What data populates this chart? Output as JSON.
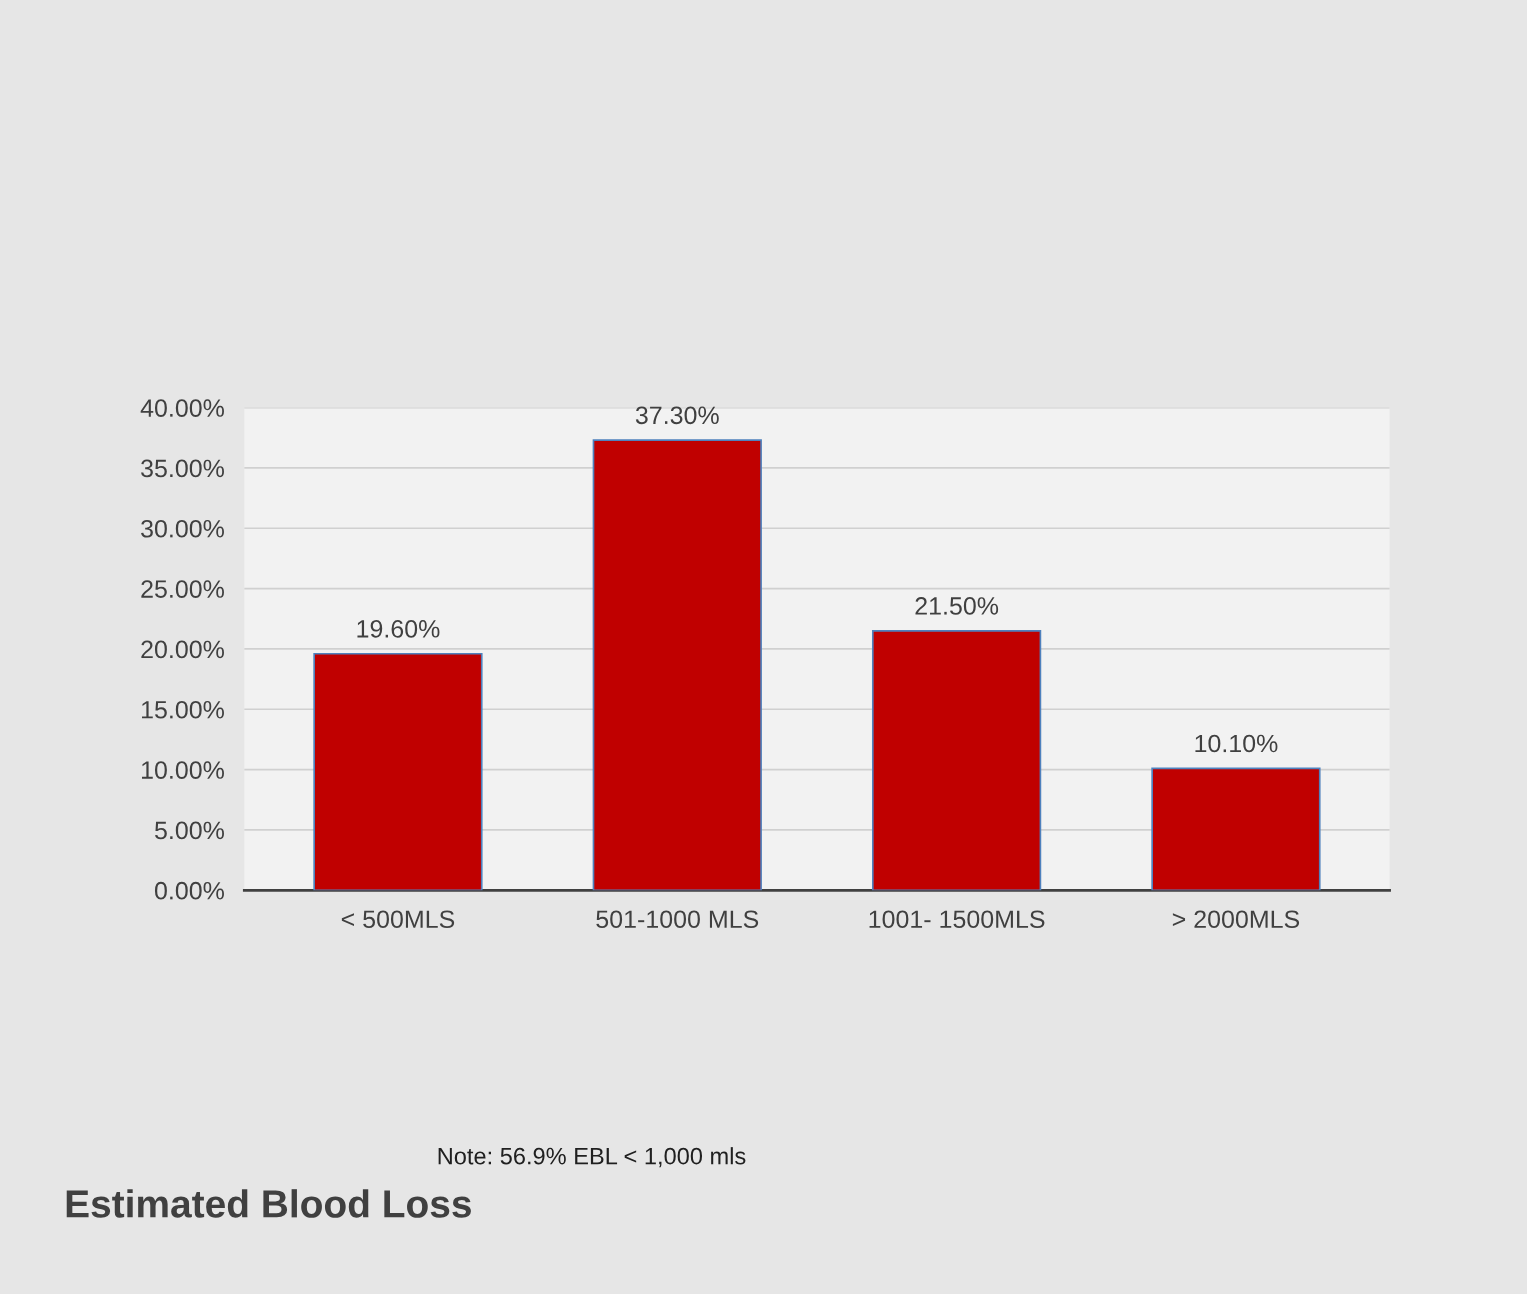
{
  "chart_data": {
    "type": "bar",
    "title": "Estimated Blood Loss",
    "categories": [
      "< 500MLS",
      "501-1000 MLS",
      "1001- 1500MLS",
      "> 2000MLS"
    ],
    "values": [
      19.6,
      37.3,
      21.5,
      10.1
    ],
    "value_labels": [
      "19.60%",
      "37.30%",
      "21.50%",
      "10.10%"
    ],
    "color": "#c00000",
    "ylim": [
      0,
      40
    ],
    "yticks": [
      {
        "value": 0,
        "label": "0.00%"
      },
      {
        "value": 5,
        "label": "5.00%"
      },
      {
        "value": 10,
        "label": "10.00%"
      },
      {
        "value": 15,
        "label": "15.00%"
      },
      {
        "value": 20,
        "label": "20.00%"
      },
      {
        "value": 25,
        "label": "25.00%"
      },
      {
        "value": 30,
        "label": "30.00%"
      },
      {
        "value": 35,
        "label": "35.00%"
      },
      {
        "value": 40,
        "label": "40.00%"
      }
    ],
    "grid": "y",
    "annotations": [
      "Note: 56.9% EBL < 1,000 mls"
    ]
  }
}
